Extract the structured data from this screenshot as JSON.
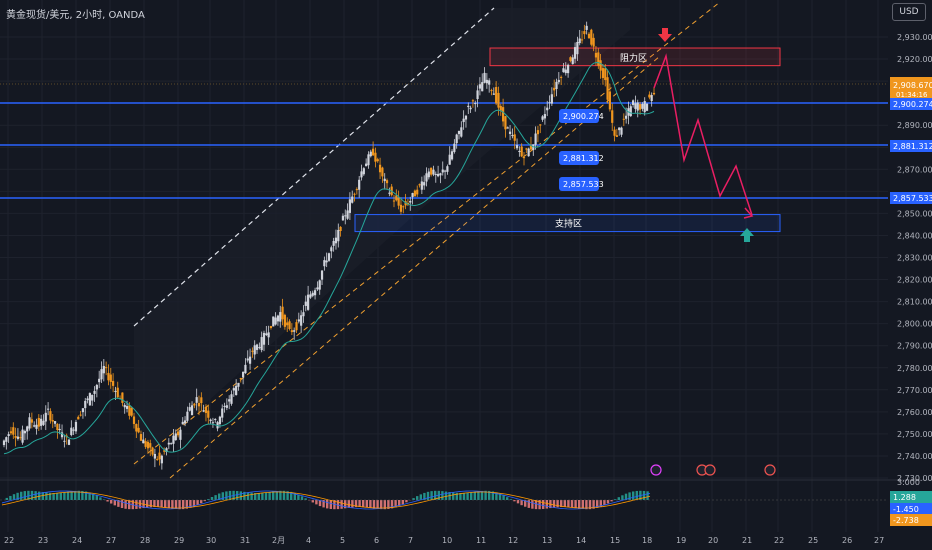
{
  "header": {
    "symbol_text": "黄金现货/美元, 2小时, OANDA",
    "currency_button": "USD"
  },
  "annotations": {
    "resistance_label": "阻力区",
    "support_label": "支持区"
  },
  "chart_data": {
    "type": "candlestick",
    "timeframe": "2小时",
    "y_axis_ticks": [
      2730,
      2740,
      2750,
      2760,
      2770,
      2780,
      2790,
      2800,
      2810,
      2820,
      2830,
      2840,
      2850,
      2860,
      2870,
      2880,
      2890,
      2900,
      2910,
      2920,
      2930
    ],
    "y_axis_tick_labels": [
      "2,730.000",
      "2,740.000",
      "2,750.000",
      "2,760.000",
      "2,770.000",
      "2,780.000",
      "2,790.000",
      "2,800.000",
      "2,810.000",
      "2,820.000",
      "2,830.000",
      "2,840.000",
      "2,850.000",
      "2,860.000",
      "2,870.000",
      "2,880.000",
      "2,890.000",
      "2,900.000",
      "2,910.000",
      "2,920.000",
      "2,930.000"
    ],
    "x_axis_labels": [
      "22",
      "23",
      "24",
      "27",
      "28",
      "29",
      "30",
      "31",
      "2月",
      "4",
      "5",
      "6",
      "7",
      "10",
      "11",
      "12",
      "13",
      "14",
      "15",
      "18",
      "19",
      "20",
      "21",
      "22",
      "25",
      "26",
      "27"
    ],
    "current_price": "2,908.670",
    "countdown": "01:34:16",
    "horizontal_levels": [
      {
        "value": 2900.274,
        "label": "2,900.274"
      },
      {
        "value": 2881.312,
        "label": "2,881.312"
      },
      {
        "value": 2857.533,
        "label": "2,857.533"
      }
    ],
    "zones": [
      {
        "name": "阻力区",
        "low": 2917,
        "high": 2925
      },
      {
        "name": "支持区",
        "low": 2846,
        "high": 2854
      }
    ],
    "price_path_approx": [
      2745,
      2752,
      2748,
      2756,
      2754,
      2760,
      2752,
      2747,
      2756,
      2764,
      2770,
      2780,
      2772,
      2764,
      2758,
      2748,
      2742,
      2738,
      2745,
      2750,
      2760,
      2766,
      2760,
      2755,
      2762,
      2770,
      2778,
      2788,
      2792,
      2800,
      2805,
      2796,
      2800,
      2812,
      2818,
      2830,
      2838,
      2850,
      2860,
      2872,
      2878,
      2866,
      2858,
      2852,
      2856,
      2862,
      2870,
      2866,
      2872,
      2884,
      2896,
      2902,
      2912,
      2905,
      2892,
      2884,
      2876,
      2880,
      2890,
      2902,
      2912,
      2918,
      2926,
      2934,
      2922,
      2910,
      2884,
      2892,
      2900,
      2898,
      2904
    ],
    "macd_panel": {
      "tick_labels": [
        "3.000"
      ],
      "values": [
        "1.288",
        "-1.450",
        "-2.738"
      ]
    },
    "grid": true
  }
}
